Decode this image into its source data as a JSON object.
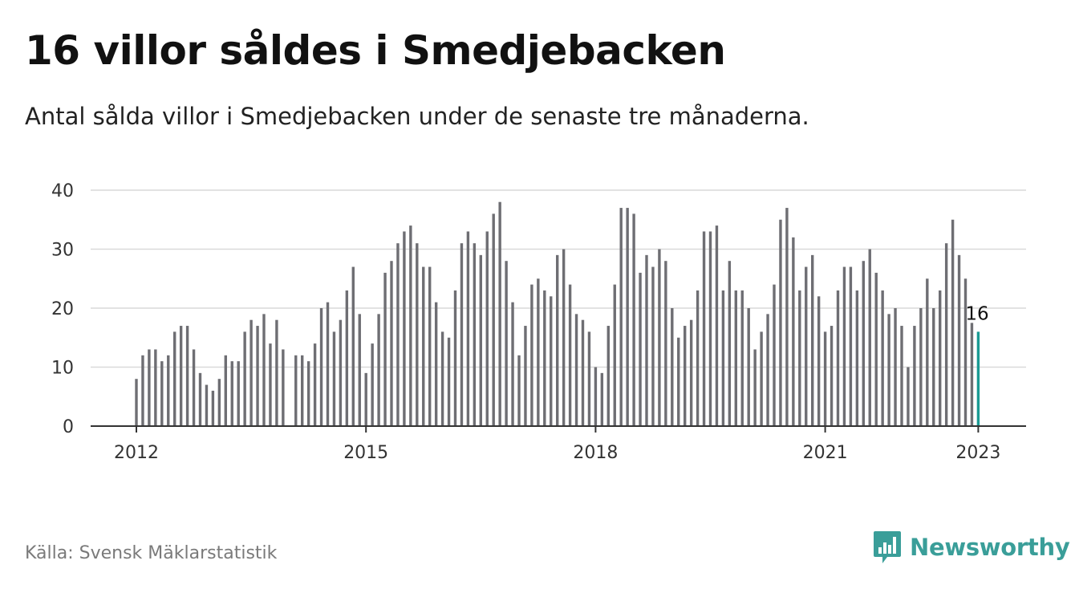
{
  "title": "16 villor såldes i Smedjebacken",
  "subtitle": "Antal sålda villor i Smedjebacken under de senaste tre månaderna.",
  "source": "Källa: Svensk Mäklarstatistik",
  "brand": {
    "name": "Newsworthy",
    "color": "#3a9e99",
    "icon": "newsworthy-bar-chart-icon"
  },
  "colors": {
    "bar": "#6e6e73",
    "highlight": "#1a9a94",
    "grid": "#d9d9d9",
    "axis": "#333333"
  },
  "chart_data": {
    "type": "bar",
    "x_start": "2012-01",
    "x_ticks": [
      "2012",
      "2015",
      "2018",
      "2021",
      "2023"
    ],
    "y_ticks": [
      0,
      10,
      20,
      30,
      40
    ],
    "ylim": [
      0,
      40
    ],
    "grid": true,
    "highlight_last": true,
    "last_label": "16",
    "values": [
      8,
      12,
      13,
      13,
      11,
      12,
      16,
      17,
      17,
      13,
      9,
      7,
      6,
      8,
      12,
      11,
      11,
      16,
      18,
      17,
      19,
      14,
      18,
      13,
      null,
      12,
      12,
      11,
      14,
      20,
      21,
      16,
      18,
      23,
      27,
      19,
      9,
      14,
      19,
      26,
      28,
      31,
      33,
      34,
      31,
      27,
      27,
      21,
      16,
      15,
      23,
      31,
      33,
      31,
      29,
      33,
      36,
      38,
      28,
      21,
      12,
      17,
      24,
      25,
      23,
      22,
      29,
      30,
      24,
      19,
      18,
      16,
      10,
      9,
      17,
      24,
      37,
      37,
      36,
      26,
      29,
      27,
      30,
      28,
      20,
      15,
      17,
      18,
      23,
      33,
      33,
      34,
      23,
      28,
      23,
      23,
      20,
      13,
      16,
      19,
      24,
      35,
      37,
      32,
      23,
      27,
      29,
      22,
      16,
      17,
      23,
      27,
      27,
      23,
      28,
      30,
      26,
      23,
      19,
      20,
      17,
      10,
      17,
      20,
      25,
      20,
      23,
      31,
      35,
      29,
      25,
      17.5,
      16
    ]
  }
}
